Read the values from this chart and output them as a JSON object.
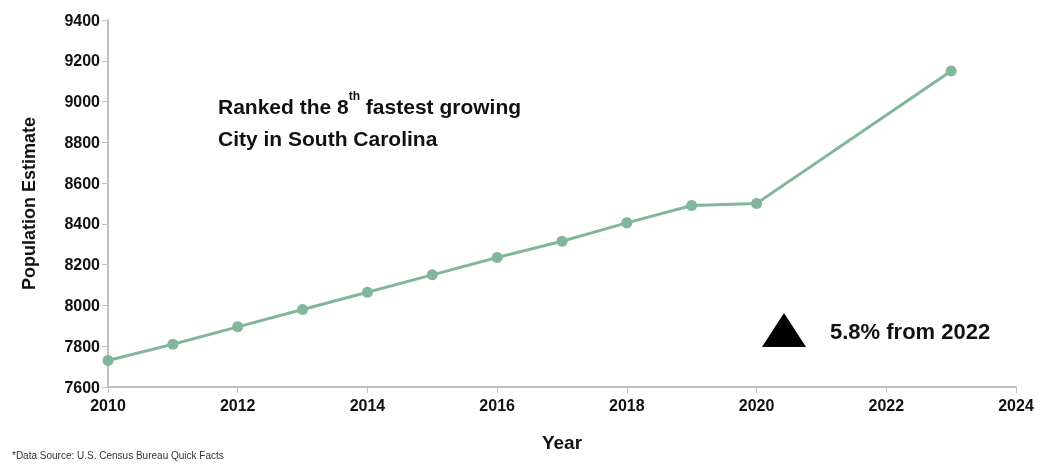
{
  "chart_data": {
    "type": "line",
    "xlabel": "Year",
    "ylabel": "Population Estimate",
    "x": [
      2010,
      2011,
      2012,
      2013,
      2014,
      2015,
      2016,
      2017,
      2018,
      2019,
      2020,
      2023
    ],
    "series": [
      {
        "color": "#82b69a",
        "values": [
          7730,
          7810,
          7895,
          7980,
          8065,
          8150,
          8235,
          8315,
          8405,
          8490,
          8500,
          9150
        ]
      }
    ],
    "xlim": [
      2010,
      2024
    ],
    "xticks": [
      2010,
      2012,
      2014,
      2016,
      2018,
      2020,
      2022,
      2024
    ],
    "ylim": [
      7600,
      9400
    ],
    "yticks": [
      7600,
      7800,
      8000,
      8200,
      8400,
      8600,
      8800,
      9000,
      9200,
      9400
    ],
    "grid": false,
    "marker": "circle",
    "line_style": "solid",
    "annotations": [
      "Ranked the 8$^{th}$ fastest growing\nCity in South Carolina",
      "5.8% from 2022",
      "*Data Source: U.S. Census Bureau Quick Facts"
    ]
  }
}
